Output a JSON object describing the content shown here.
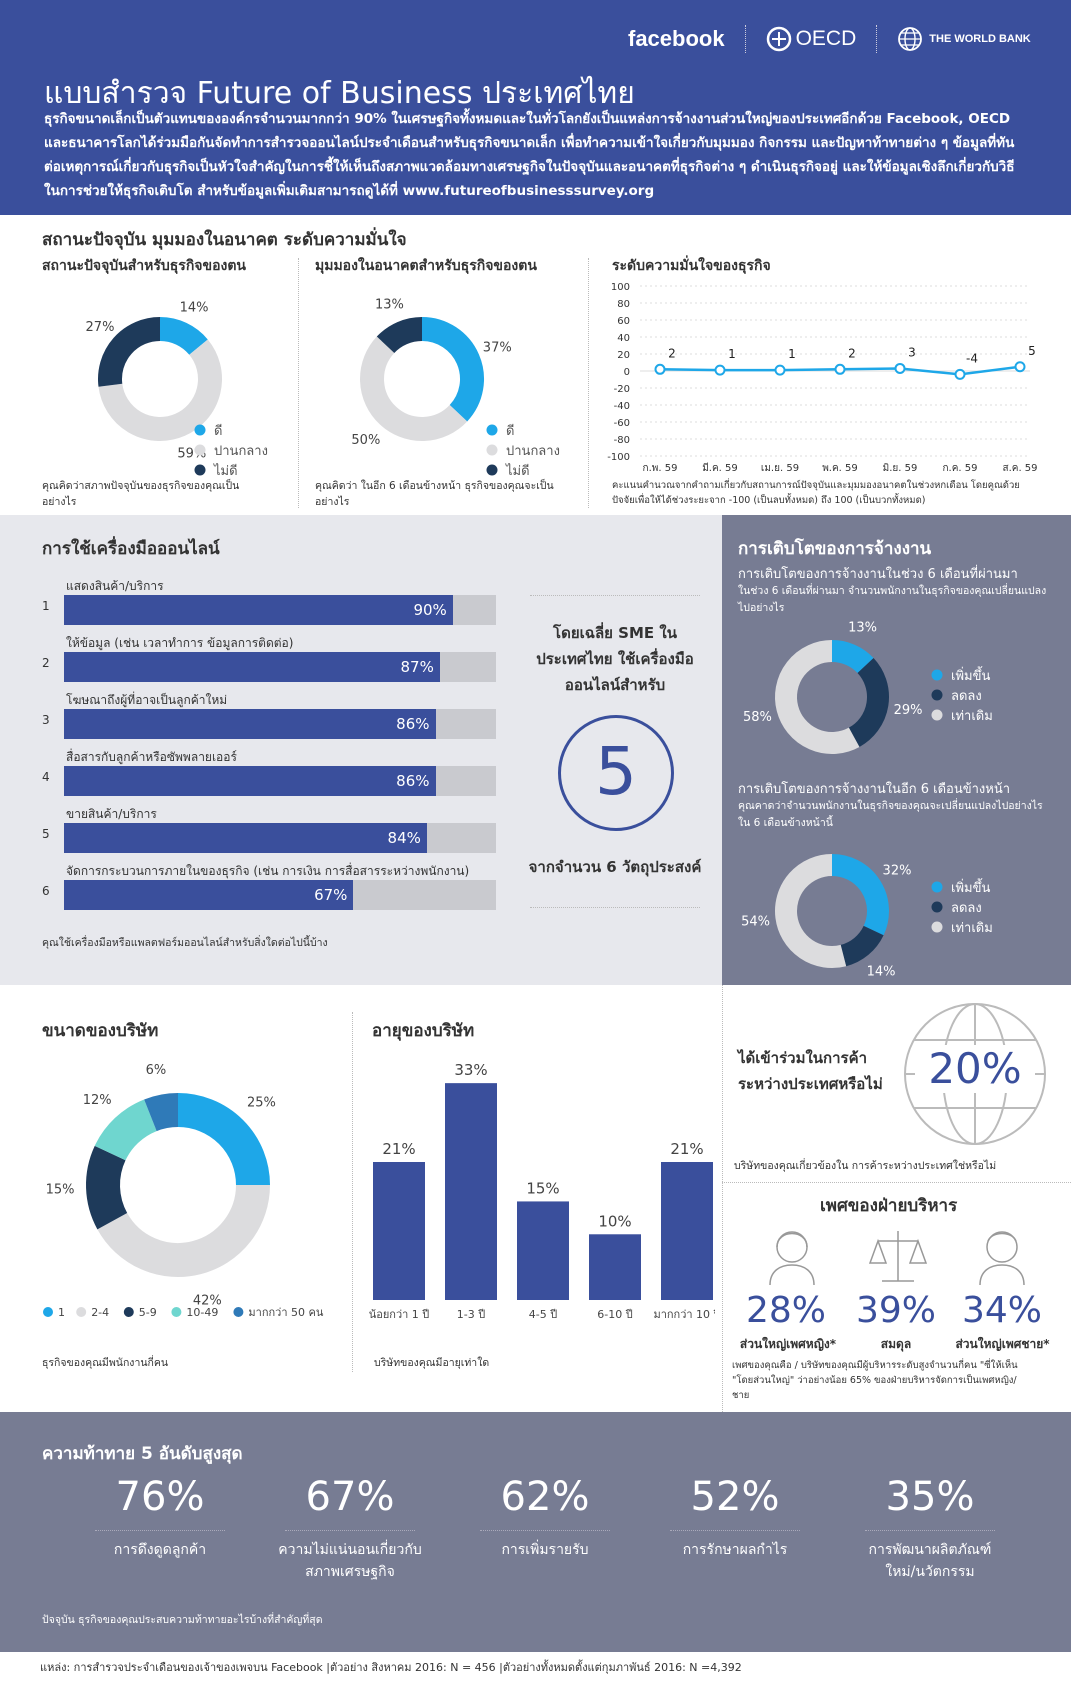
{
  "header": {
    "logo_facebook": "facebook",
    "logo_oecd": "OECD",
    "logo_worldbank": "THE WORLD BANK",
    "title": "แบบสำรวจ Future of Business ประเทศไทย",
    "intro": "ธุรกิจขนาดเล็กเป็นตัวแทนขององค์กรจำนวนมากกว่า 90% ในเศรษฐกิจทั้งหมดและในทั่วโลกยังเป็นแหล่งการจ้างงานส่วนใหญ่ของประเทศอีกด้วย Facebook, OECD และธนาคารโลกได้ร่วมมือกันจัดทำการสำรวจออนไลน์ประจำเดือนสำหรับธุรกิจขนาดเล็ก เพื่อทำความเข้าใจเกี่ยวกับมุมมอง กิจกรรม และปัญหาท้าทายต่าง ๆ ข้อมูลที่ทันต่อเหตุการณ์เกี่ยวกับธุรกิจเป็นหัวใจสำคัญในการชี้ให้เห็นถึงสภาพแวดล้อมทางเศรษฐกิจในปัจจุบันและอนาคตที่ธุรกิจต่าง ๆ ดำเนินธุรกิจอยู่ และให้ข้อมูลเชิงลึกเกี่ยวกับวิธีในการช่วยให้ธุรกิจเติบโต สำหรับข้อมูลเพิ่มเติมสามารถดูได้ที่ www.futureofbusinesssurvey.org"
  },
  "colors": {
    "light_blue": "#1ea7e8",
    "navy": "#1e3a5a",
    "gray": "#dcdcde",
    "teal": "#6fd6cf",
    "mid_blue": "#2f7ab8",
    "brand": "#3a4f9c"
  },
  "section1": {
    "title": "สถานะปัจจุบัน มุมมองในอนาคต ระดับความมั่นใจ",
    "current_title": "สถานะปัจจุบันสำหรับธุรกิจของตน",
    "current_note": "คุณคิดว่าสภาพปัจจุบันของธุรกิจของคุณเป็นอย่างไร",
    "future_title": "มุมมองในอนาคตสำหรับธุรกิจของตน",
    "future_note": "คุณคิดว่า ในอีก 6 เดือนข้างหน้า ธุรกิจของคุณจะเป็นอย่างไร",
    "confidence_title": "ระดับความมั่นใจของธุรกิจ",
    "confidence_note": "คะแนนคำนวณจากคำถามเกี่ยวกับสถานการณ์ปัจจุบันและมุมมองอนาคตในช่วงหกเดือน โดยคูณด้วยปัจจัยเพื่อให้ได้ช่วงระยะจาก -100 (เป็นลบทั้งหมด) ถึง 100 (เป็นบวกทั้งหมด)",
    "legend": [
      "ดี",
      "ปานกลาง",
      "ไม่ดี"
    ]
  },
  "tools": {
    "title": "การใช้เครื่องมือออนไลน์",
    "note": "คุณใช้เครื่องมือหรือแพลตฟอร์มออนไลน์สำหรับสิ่งใดต่อไปนี้บ้าง",
    "avg_text": "โดยเฉลี่ย SME ใน ประเทศไทย ใช้เครื่องมือ ออนไลน์สำหรับ",
    "avg_num": "5",
    "avg_sub": "จากจำนวน 6 วัตถุประสงค์"
  },
  "employment": {
    "title": "การเติบโตของการจ้างงาน",
    "past_title": "การเติบโตของการจ้างงานในช่วง 6 เดือนที่ผ่านมา",
    "past_note": "ในช่วง 6 เดือนที่ผ่านมา จำนวนพนักงานในธุรกิจของคุณเปลี่ยนแปลงไปอย่างไร",
    "future_title": "การเติบโตของการจ้างงานในอีก 6 เดือนข้างหน้า",
    "future_note": "คุณคาดว่าจำนวนพนักงานในธุรกิจของคุณจะเปลี่ยนแปลงไปอย่างไร ใน 6 เดือนข้างหน้านี้",
    "legend": [
      "เพิ่มขึ้น",
      "ลดลง",
      "เท่าเดิม"
    ]
  },
  "size": {
    "title": "ขนาดของบริษัท",
    "note": "ธุรกิจของคุณมีพนักงานกี่คน"
  },
  "age": {
    "title": "อายุของบริษัท",
    "note": "บริษัทของคุณมีอายุเท่าใด"
  },
  "trade": {
    "title": "ได้เข้าร่วมในการค้าระหว่างประเทศหรือไม่",
    "value": "20%",
    "note": "บริษัทของคุณเกี่ยวข้องใน การค้าระหว่างประเทศใช่หรือไม่"
  },
  "gender": {
    "title": "เพศของฝ่ายบริหาร",
    "items": [
      {
        "value": "28%",
        "label": "ส่วนใหญ่เพศหญิง*"
      },
      {
        "value": "39%",
        "label": "สมดุล"
      },
      {
        "value": "34%",
        "label": "ส่วนใหญ่เพศชาย*"
      }
    ],
    "note": "เพศของคุณคือ / บริษัทของคุณมีผู้บริหารระดับสูงจำนวนกี่คน \"ซี่ให้เห็น \"โดยส่วนใหญ่\" ว่าอย่างน้อย 65% ของฝ่ายบริหารจัดการเป็นเพศหญิง/ชาย"
  },
  "challenges": {
    "title": "ความท้าทาย 5 อันดับสูงสุด",
    "items": [
      {
        "value": "76%",
        "label": "การดึงดูดลูกค้า"
      },
      {
        "value": "67%",
        "label": "ความไม่แน่นอนเกี่ยวกับ สภาพเศรษฐกิจ"
      },
      {
        "value": "62%",
        "label": "การเพิ่มรายรับ"
      },
      {
        "value": "52%",
        "label": "การรักษาผลกำไร"
      },
      {
        "value": "35%",
        "label": "การพัฒนาผลิตภัณฑ์ ใหม่/นวัตกรรม"
      }
    ],
    "note": "ปัจจุบัน ธุรกิจของคุณประสบความท้าทายอะไรบ้างที่สำคัญที่สุด"
  },
  "footer": "แหล่ง: การสำรวจประจำเดือนของเจ้าของเพจบน Facebook |ตัวอย่าง สิงหาคม 2016: N = 456 |ตัวอย่างทั้งหมดตั้งแต่กุมภาพันธ์ 2016: N =4,392",
  "chart_data": [
    {
      "type": "pie",
      "name": "current",
      "categories": [
        "ดี",
        "ปานกลาง",
        "ไม่ดี"
      ],
      "values": [
        14,
        59,
        27
      ],
      "labels": [
        "14%",
        "59%",
        "27%"
      ]
    },
    {
      "type": "pie",
      "name": "future",
      "categories": [
        "ดี",
        "ปานกลาง",
        "ไม่ดี"
      ],
      "values": [
        37,
        50,
        13
      ],
      "labels": [
        "37%",
        "50%",
        "13%"
      ]
    },
    {
      "type": "line",
      "name": "confidence",
      "x": [
        "ก.พ. 59",
        "มี.ค. 59",
        "เม.ย. 59",
        "พ.ค. 59",
        "มิ.ย. 59",
        "ก.ค. 59",
        "ส.ค. 59"
      ],
      "values": [
        2,
        1,
        1,
        2,
        3,
        -4,
        5
      ],
      "ylim": [
        -100,
        100
      ],
      "yticks": [
        100,
        80,
        60,
        40,
        20,
        0,
        -20,
        -40,
        -60,
        -80,
        -100
      ]
    },
    {
      "type": "bar",
      "name": "online_tools",
      "orientation": "horizontal",
      "categories": [
        "แสดงสินค้า/บริการ",
        "ให้ข้อมูล (เช่น เวลาทำการ ข้อมูลการติดต่อ)",
        "โฆษณาถึงผู้ที่อาจเป็นลูกค้าใหม่",
        "สื่อสารกับลูกค้าหรือซัพพลายเออร์",
        "ขายสินค้า/บริการ",
        "จัดการกระบวนการภายในของธุรกิจ (เช่น การเงิน การสื่อสารระหว่างพนักงาน)"
      ],
      "numbers": [
        "1",
        "2",
        "3",
        "4",
        "5",
        "6"
      ],
      "values": [
        90,
        87,
        86,
        86,
        84,
        67
      ],
      "labels": [
        "90%",
        "87%",
        "86%",
        "86%",
        "84%",
        "67%"
      ]
    },
    {
      "type": "pie",
      "name": "employment_past",
      "categories": [
        "เพิ่มขึ้น",
        "ลดลง",
        "เท่าเดิม"
      ],
      "values": [
        13,
        29,
        58
      ],
      "labels": [
        "13%",
        "29%",
        "58%"
      ]
    },
    {
      "type": "pie",
      "name": "employment_future",
      "categories": [
        "เพิ่มขึ้น",
        "ลดลง",
        "เท่าเดิม"
      ],
      "values": [
        32,
        14,
        54
      ],
      "labels": [
        "32%",
        "14%",
        "54%"
      ]
    },
    {
      "type": "pie",
      "name": "company_size",
      "categories": [
        "1",
        "2-4",
        "5-9",
        "10-49",
        "มากกว่า 50 คน"
      ],
      "values": [
        25,
        42,
        15,
        12,
        6
      ],
      "labels": [
        "25%",
        "42%",
        "15%",
        "12%",
        "6%"
      ]
    },
    {
      "type": "bar",
      "name": "company_age",
      "categories": [
        "น้อยกว่า 1 ปี",
        "1-3 ปี",
        "4-5 ปี",
        "6-10 ปี",
        "มากกว่า 10 ปี"
      ],
      "values": [
        21,
        33,
        15,
        10,
        21
      ],
      "labels": [
        "21%",
        "33%",
        "15%",
        "10%",
        "21%"
      ]
    }
  ]
}
